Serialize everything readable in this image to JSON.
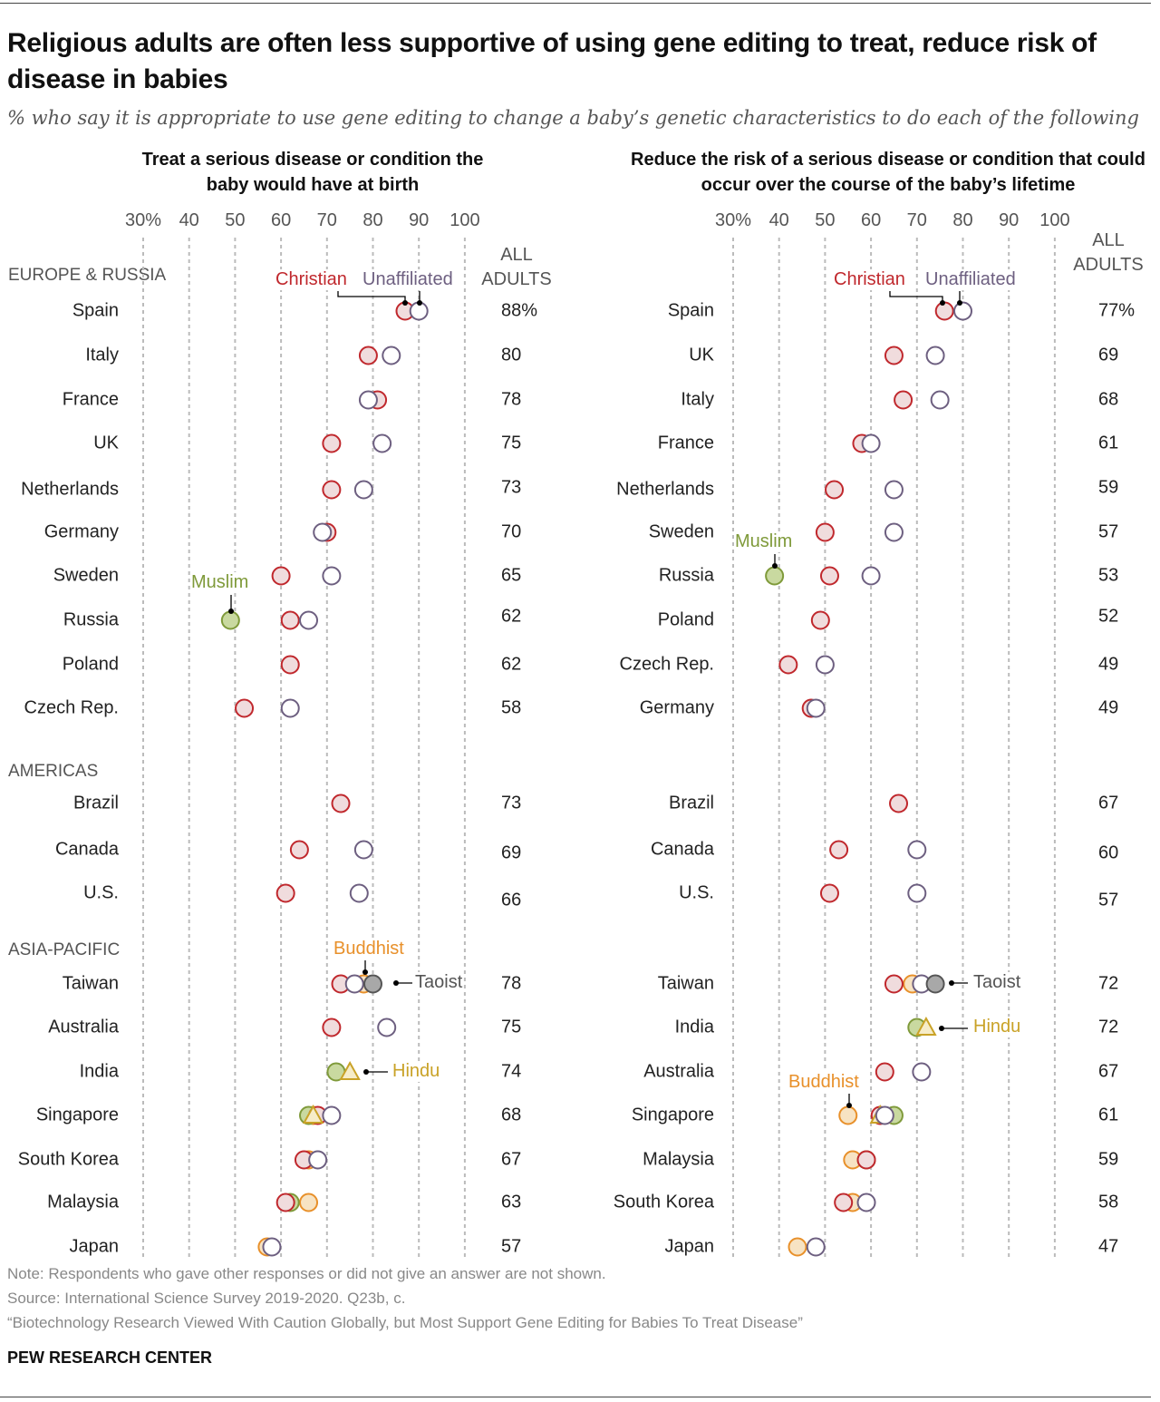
{
  "title": "Religious adults are often less supportive of using gene editing to treat, reduce risk of disease in babies",
  "subtitle": "% who say it is appropriate to use gene editing to change a baby’s genetic characteristics to do each of the following",
  "colors": {
    "Christian": "#c0282d",
    "Unaffiliated": "#6d5f80",
    "Muslim": "#7f9a3a",
    "Buddhist": "#e8902a",
    "Hindu": "#c9a227",
    "Taoist": "#555555"
  },
  "legend_labels": {
    "Christian": "Christian",
    "Unaffiliated": "Unaffiliated",
    "Muslim": "Muslim",
    "Buddhist": "Buddhist",
    "Hindu": "Hindu",
    "Taoist": "Taoist"
  },
  "regions": [
    "EUROPE & RUSSIA",
    "AMERICAS",
    "ASIA-PACIFIC"
  ],
  "all_adults_header": "ALL ADULTS",
  "chart_data": [
    {
      "type": "dot",
      "title": "Treat a serious disease or condition the baby would have at birth",
      "xlim": [
        30,
        100
      ],
      "ticks": [
        "30%",
        "40",
        "50",
        "60",
        "70",
        "80",
        "90",
        "100"
      ],
      "grid": true,
      "rows": [
        {
          "region": 0,
          "country": "Spain",
          "all": "88%",
          "Christian": 87,
          "Unaffiliated": 90
        },
        {
          "region": 0,
          "country": "Italy",
          "all": "80",
          "Christian": 79,
          "Unaffiliated": 84
        },
        {
          "region": 0,
          "country": "France",
          "all": "78",
          "Christian": 81,
          "Unaffiliated": 79
        },
        {
          "region": 0,
          "country": "UK",
          "all": "75",
          "Christian": 71,
          "Unaffiliated": 82
        },
        {
          "region": 0,
          "country": "Netherlands",
          "all": "73",
          "Christian": 71,
          "Unaffiliated": 78
        },
        {
          "region": 0,
          "country": "Germany",
          "all": "70",
          "Christian": 70,
          "Unaffiliated": 69
        },
        {
          "region": 0,
          "country": "Sweden",
          "all": "65",
          "Christian": 60,
          "Unaffiliated": 71
        },
        {
          "region": 0,
          "country": "Russia",
          "all": "62",
          "Muslim": 49,
          "Christian": 62,
          "Unaffiliated": 66
        },
        {
          "region": 0,
          "country": "Poland",
          "all": "62",
          "Christian": 62
        },
        {
          "region": 0,
          "country": "Czech Rep.",
          "all": "58",
          "Christian": 52,
          "Unaffiliated": 62
        },
        {
          "region": 1,
          "country": "Brazil",
          "all": "73",
          "Christian": 73
        },
        {
          "region": 1,
          "country": "Canada",
          "all": "69",
          "Christian": 64,
          "Unaffiliated": 78
        },
        {
          "region": 1,
          "country": "U.S.",
          "all": "66",
          "Christian": 61,
          "Unaffiliated": 77
        },
        {
          "region": 2,
          "country": "Taiwan",
          "all": "78",
          "Christian": 73,
          "Unaffiliated": 76,
          "Buddhist": 78,
          "Taoist": 80
        },
        {
          "region": 2,
          "country": "Australia",
          "all": "75",
          "Christian": 71,
          "Unaffiliated": 83
        },
        {
          "region": 2,
          "country": "India",
          "all": "74",
          "Muslim": 72,
          "Hindu": 75
        },
        {
          "region": 2,
          "country": "Singapore",
          "all": "68",
          "Buddhist": 67,
          "Muslim": 66,
          "Christian": 68,
          "Hindu": 67,
          "Unaffiliated": 71
        },
        {
          "region": 2,
          "country": "South Korea",
          "all": "67",
          "Buddhist": 66,
          "Christian": 65,
          "Unaffiliated": 68
        },
        {
          "region": 2,
          "country": "Malaysia",
          "all": "63",
          "Muslim": 62,
          "Christian": 61,
          "Buddhist": 66
        },
        {
          "region": 2,
          "country": "Japan",
          "all": "57",
          "Buddhist": 57,
          "Unaffiliated": 58
        }
      ]
    },
    {
      "type": "dot",
      "title": "Reduce the risk of a serious disease or condition that could occur over the course of the baby’s lifetime",
      "xlim": [
        30,
        100
      ],
      "ticks": [
        "30%",
        "40",
        "50",
        "60",
        "70",
        "80",
        "90",
        "100"
      ],
      "grid": true,
      "rows": [
        {
          "region": 0,
          "country": "Spain",
          "all": "77%",
          "Christian": 76,
          "Unaffiliated": 80
        },
        {
          "region": 0,
          "country": "UK",
          "all": "69",
          "Christian": 65,
          "Unaffiliated": 74
        },
        {
          "region": 0,
          "country": "Italy",
          "all": "68",
          "Christian": 67,
          "Unaffiliated": 75
        },
        {
          "region": 0,
          "country": "France",
          "all": "61",
          "Christian": 58,
          "Unaffiliated": 60
        },
        {
          "region": 0,
          "country": "Netherlands",
          "all": "59",
          "Christian": 52,
          "Unaffiliated": 65
        },
        {
          "region": 0,
          "country": "Sweden",
          "all": "57",
          "Christian": 50,
          "Unaffiliated": 65
        },
        {
          "region": 0,
          "country": "Russia",
          "all": "53",
          "Muslim": 39,
          "Christian": 51,
          "Unaffiliated": 60
        },
        {
          "region": 0,
          "country": "Poland",
          "all": "52",
          "Christian": 49
        },
        {
          "region": 0,
          "country": "Czech Rep.",
          "all": "49",
          "Christian": 42,
          "Unaffiliated": 50
        },
        {
          "region": 0,
          "country": "Germany",
          "all": "49",
          "Christian": 47,
          "Unaffiliated": 48
        },
        {
          "region": 1,
          "country": "Brazil",
          "all": "67",
          "Christian": 66
        },
        {
          "region": 1,
          "country": "Canada",
          "all": "60",
          "Christian": 53,
          "Unaffiliated": 70
        },
        {
          "region": 1,
          "country": "U.S.",
          "all": "57",
          "Christian": 51,
          "Unaffiliated": 70
        },
        {
          "region": 2,
          "country": "Taiwan",
          "all": "72",
          "Christian": 65,
          "Buddhist": 69,
          "Unaffiliated": 71,
          "Taoist": 74
        },
        {
          "region": 2,
          "country": "India",
          "all": "72",
          "Muslim": 70,
          "Hindu": 72
        },
        {
          "region": 2,
          "country": "Australia",
          "all": "67",
          "Christian": 63,
          "Unaffiliated": 71
        },
        {
          "region": 2,
          "country": "Singapore",
          "all": "61",
          "Buddhist": 55,
          "Christian": 62,
          "Muslim": 65,
          "Unaffiliated": 63,
          "Hindu": 62
        },
        {
          "region": 2,
          "country": "Malaysia",
          "all": "59",
          "Buddhist": 56,
          "Muslim": 59,
          "Christian": 59
        },
        {
          "region": 2,
          "country": "South Korea",
          "all": "58",
          "Christian": 54,
          "Buddhist": 56,
          "Unaffiliated": 59
        },
        {
          "region": 2,
          "country": "Japan",
          "all": "47",
          "Buddhist": 44,
          "Unaffiliated": 48
        }
      ]
    }
  ],
  "footer": {
    "note": "Note: Respondents who gave other responses or did not give an answer are not shown.",
    "source": "Source: International Science Survey 2019-2020. Q23b, c.",
    "report": "“Biotechnology Research Viewed With Caution Globally, but Most Support Gene Editing for Babies To Treat Disease”",
    "brand": "PEW RESEARCH CENTER"
  }
}
